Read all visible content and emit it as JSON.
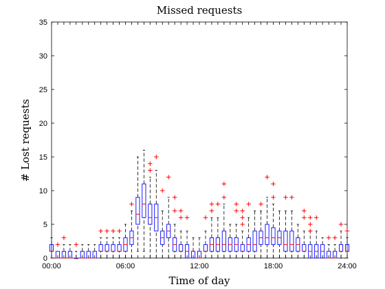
{
  "chart_data": {
    "type": "box",
    "title": "Missed requests",
    "xlabel": "Time of day",
    "ylabel": "# Lost requests",
    "xlim": [
      0,
      24
    ],
    "ylim": [
      0,
      35
    ],
    "x_ticks": [
      "00:00",
      "06:00",
      "12:00",
      "18:00",
      "24:00"
    ],
    "x_tick_values": [
      0,
      6,
      12,
      18,
      24
    ],
    "y_ticks": [
      0,
      5,
      10,
      15,
      20,
      25,
      30,
      35
    ],
    "bin_hours": 0.5,
    "grid": false,
    "colors": {
      "box": "#0000ff",
      "median": "#ff0000",
      "whisker": "#000000",
      "outlier": "#ff0000",
      "axis": "#000000"
    },
    "boxes": [
      {
        "x": 0.0,
        "q1": 1,
        "median": 1,
        "q3": 2,
        "whisker_low": 0,
        "whisker_high": 3,
        "outliers": []
      },
      {
        "x": 0.5,
        "q1": 0,
        "median": 0,
        "q3": 1,
        "whisker_low": 0,
        "whisker_high": 1,
        "outliers": [
          2
        ]
      },
      {
        "x": 1.0,
        "q1": 0,
        "median": 0,
        "q3": 1,
        "whisker_low": 0,
        "whisker_high": 2,
        "outliers": [
          3
        ]
      },
      {
        "x": 1.5,
        "q1": 0,
        "median": 0,
        "q3": 1,
        "whisker_low": 0,
        "whisker_high": 2,
        "outliers": []
      },
      {
        "x": 2.0,
        "q1": 0,
        "median": 0,
        "q3": 0,
        "whisker_low": 0,
        "whisker_high": 1,
        "outliers": [
          2
        ]
      },
      {
        "x": 2.5,
        "q1": 0,
        "median": 0,
        "q3": 1,
        "whisker_low": 0,
        "whisker_high": 2,
        "outliers": []
      },
      {
        "x": 3.0,
        "q1": 0,
        "median": 0,
        "q3": 1,
        "whisker_low": 0,
        "whisker_high": 2,
        "outliers": []
      },
      {
        "x": 3.5,
        "q1": 0,
        "median": 0,
        "q3": 1,
        "whisker_low": 0,
        "whisker_high": 2,
        "outliers": []
      },
      {
        "x": 4.0,
        "q1": 1,
        "median": 1,
        "q3": 2,
        "whisker_low": 0,
        "whisker_high": 3,
        "outliers": [
          4
        ]
      },
      {
        "x": 4.5,
        "q1": 1,
        "median": 1,
        "q3": 2,
        "whisker_low": 0,
        "whisker_high": 3,
        "outliers": [
          4
        ]
      },
      {
        "x": 5.0,
        "q1": 1,
        "median": 1,
        "q3": 2,
        "whisker_low": 0,
        "whisker_high": 3,
        "outliers": [
          4
        ]
      },
      {
        "x": 5.5,
        "q1": 1,
        "median": 1,
        "q3": 2,
        "whisker_low": 0,
        "whisker_high": 3,
        "outliers": [
          4
        ]
      },
      {
        "x": 6.0,
        "q1": 1,
        "median": 2,
        "q3": 3,
        "whisker_low": 0,
        "whisker_high": 5,
        "outliers": []
      },
      {
        "x": 6.5,
        "q1": 2,
        "median": 3,
        "q3": 4,
        "whisker_low": 0,
        "whisker_high": 7,
        "outliers": [
          8
        ]
      },
      {
        "x": 7.0,
        "q1": 5,
        "median": 6.5,
        "q3": 9,
        "whisker_low": 1,
        "whisker_high": 15,
        "outliers": []
      },
      {
        "x": 7.5,
        "q1": 6,
        "median": 8,
        "q3": 11,
        "whisker_low": 1,
        "whisker_high": 16,
        "outliers": []
      },
      {
        "x": 8.0,
        "q1": 5,
        "median": 6,
        "q3": 8,
        "whisker_low": 0,
        "whisker_high": 12,
        "outliers": [
          13,
          14
        ]
      },
      {
        "x": 8.5,
        "q1": 4,
        "median": 6,
        "q3": 8,
        "whisker_low": 0,
        "whisker_high": 13,
        "outliers": [
          15
        ]
      },
      {
        "x": 9.0,
        "q1": 2,
        "median": 3,
        "q3": 4,
        "whisker_low": 0,
        "whisker_high": 7,
        "outliers": [
          10
        ]
      },
      {
        "x": 9.5,
        "q1": 3,
        "median": 4,
        "q3": 5,
        "whisker_low": 0,
        "whisker_high": 9,
        "outliers": [
          12
        ]
      },
      {
        "x": 10.0,
        "q1": 1,
        "median": 2,
        "q3": 3,
        "whisker_low": 0,
        "whisker_high": 5,
        "outliers": [
          7,
          9
        ]
      },
      {
        "x": 10.5,
        "q1": 1,
        "median": 1,
        "q3": 2,
        "whisker_low": 0,
        "whisker_high": 4,
        "outliers": [
          6,
          7
        ]
      },
      {
        "x": 11.0,
        "q1": 0,
        "median": 1,
        "q3": 2,
        "whisker_low": 0,
        "whisker_high": 4,
        "outliers": [
          6
        ]
      },
      {
        "x": 11.5,
        "q1": 0,
        "median": 1,
        "q3": 1,
        "whisker_low": 0,
        "whisker_high": 3,
        "outliers": []
      },
      {
        "x": 12.0,
        "q1": 0,
        "median": 0,
        "q3": 1,
        "whisker_low": 0,
        "whisker_high": 3,
        "outliers": []
      },
      {
        "x": 12.5,
        "q1": 1,
        "median": 1,
        "q3": 2,
        "whisker_low": 0,
        "whisker_high": 4,
        "outliers": [
          6
        ]
      },
      {
        "x": 13.0,
        "q1": 1,
        "median": 2,
        "q3": 3,
        "whisker_low": 0,
        "whisker_high": 6,
        "outliers": [
          7,
          8
        ]
      },
      {
        "x": 13.5,
        "q1": 1,
        "median": 2,
        "q3": 3,
        "whisker_low": 0,
        "whisker_high": 6,
        "outliers": [
          8
        ]
      },
      {
        "x": 14.0,
        "q1": 1,
        "median": 2,
        "q3": 4,
        "whisker_low": 0,
        "whisker_high": 8,
        "outliers": [
          9,
          11
        ]
      },
      {
        "x": 14.5,
        "q1": 1,
        "median": 2,
        "q3": 3,
        "whisker_low": 0,
        "whisker_high": 5,
        "outliers": []
      },
      {
        "x": 15.0,
        "q1": 1,
        "median": 2,
        "q3": 3,
        "whisker_low": 0,
        "whisker_high": 5,
        "outliers": [
          7,
          8
        ]
      },
      {
        "x": 15.5,
        "q1": 1,
        "median": 1,
        "q3": 2,
        "whisker_low": 0,
        "whisker_high": 4,
        "outliers": [
          5,
          6,
          7
        ]
      },
      {
        "x": 16.0,
        "q1": 1,
        "median": 2,
        "q3": 3,
        "whisker_low": 0,
        "whisker_high": 6,
        "outliers": [
          8
        ]
      },
      {
        "x": 16.5,
        "q1": 1,
        "median": 2,
        "q3": 4,
        "whisker_low": 0,
        "whisker_high": 7,
        "outliers": []
      },
      {
        "x": 17.0,
        "q1": 2,
        "median": 3,
        "q3": 4,
        "whisker_low": 0,
        "whisker_high": 7,
        "outliers": [
          8
        ]
      },
      {
        "x": 17.5,
        "q1": 2,
        "median": 3,
        "q3": 5,
        "whisker_low": 0,
        "whisker_high": 9,
        "outliers": [
          12
        ]
      },
      {
        "x": 18.0,
        "q1": 2,
        "median": 3,
        "q3": 4.5,
        "whisker_low": 0,
        "whisker_high": 8,
        "outliers": [
          9,
          11
        ]
      },
      {
        "x": 18.5,
        "q1": 2,
        "median": 3,
        "q3": 4,
        "whisker_low": 0,
        "whisker_high": 7,
        "outliers": []
      },
      {
        "x": 19.0,
        "q1": 1,
        "median": 2,
        "q3": 4,
        "whisker_low": 0,
        "whisker_high": 7,
        "outliers": [
          9
        ]
      },
      {
        "x": 19.5,
        "q1": 1,
        "median": 2,
        "q3": 4,
        "whisker_low": 0,
        "whisker_high": 7,
        "outliers": [
          9
        ]
      },
      {
        "x": 20.0,
        "q1": 1,
        "median": 2,
        "q3": 3,
        "whisker_low": 0,
        "whisker_high": 5,
        "outliers": []
      },
      {
        "x": 20.5,
        "q1": 1,
        "median": 1,
        "q3": 2,
        "whisker_low": 0,
        "whisker_high": 4,
        "outliers": [
          6,
          7
        ]
      },
      {
        "x": 21.0,
        "q1": 0,
        "median": 1,
        "q3": 2,
        "whisker_low": 0,
        "whisker_high": 4,
        "outliers": [
          4,
          5,
          6
        ]
      },
      {
        "x": 21.5,
        "q1": 0,
        "median": 1,
        "q3": 2,
        "whisker_low": 0,
        "whisker_high": 4,
        "outliers": [
          6
        ]
      },
      {
        "x": 22.0,
        "q1": 0,
        "median": 1,
        "q3": 2,
        "whisker_low": 0,
        "whisker_high": 3,
        "outliers": []
      },
      {
        "x": 22.5,
        "q1": 0,
        "median": 0,
        "q3": 1,
        "whisker_low": 0,
        "whisker_high": 2,
        "outliers": [
          3
        ]
      },
      {
        "x": 23.0,
        "q1": 0,
        "median": 0,
        "q3": 1,
        "whisker_low": 0,
        "whisker_high": 2,
        "outliers": [
          3
        ]
      },
      {
        "x": 23.5,
        "q1": 1,
        "median": 1,
        "q3": 2,
        "whisker_low": 0,
        "whisker_high": 4,
        "outliers": [
          5
        ]
      },
      {
        "x": 24.0,
        "q1": 1,
        "median": 1,
        "q3": 2,
        "whisker_low": 0,
        "whisker_high": 3,
        "outliers": [
          4
        ]
      }
    ]
  }
}
